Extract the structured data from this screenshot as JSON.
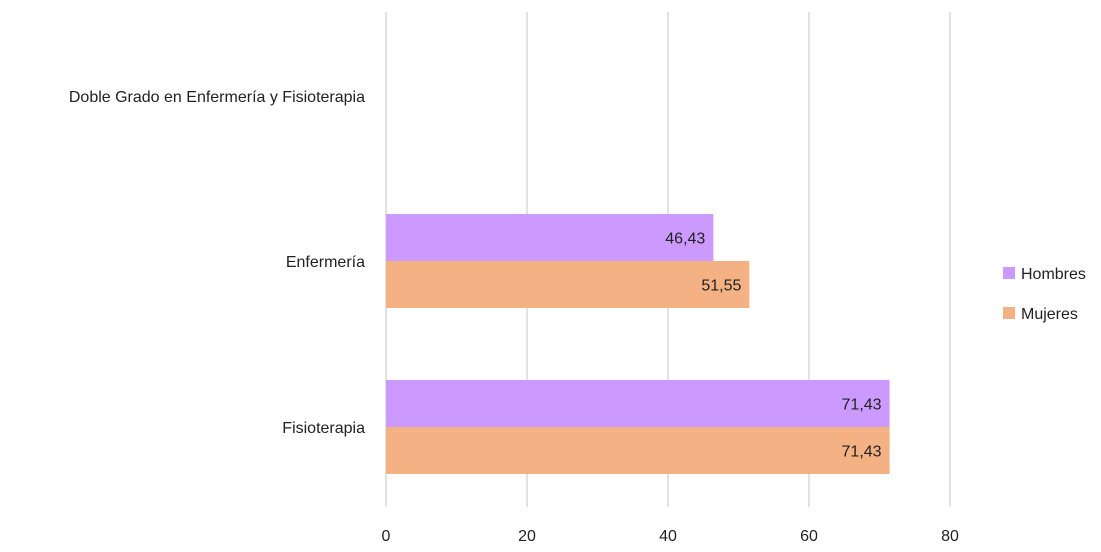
{
  "chart_data": {
    "type": "bar",
    "orientation": "horizontal",
    "categories": [
      "Doble Grado en Enfermería y Fisioterapia",
      "Enfermería",
      "Fisioterapia"
    ],
    "series": [
      {
        "name": "Hombres",
        "color": "#cc99ff",
        "values": [
          null,
          46.43,
          71.43
        ],
        "labels": [
          "",
          "46,43",
          "71,43"
        ]
      },
      {
        "name": "Mujeres",
        "color": "#f4b183",
        "values": [
          null,
          51.55,
          71.43
        ],
        "labels": [
          "",
          "51,55",
          "71,43"
        ]
      }
    ],
    "x_ticks": [
      0,
      20,
      40,
      60,
      80
    ],
    "xlim": [
      0,
      80
    ],
    "title": "",
    "xlabel": "",
    "ylabel": "",
    "grid": true,
    "gridline_color": "#d9d9d9",
    "legend_position": "right"
  }
}
